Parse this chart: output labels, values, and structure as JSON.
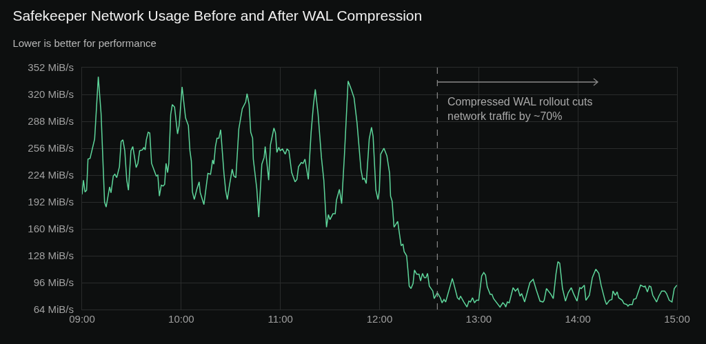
{
  "chart_data": {
    "type": "line",
    "title": "Safekeeper Network Usage Before and After WAL Compression",
    "subtitle": "Lower is better for performance",
    "series": [
      {
        "color": "#5ed69b",
        "x": [
          9.0,
          9.014,
          9.03,
          9.046,
          9.06,
          9.081,
          9.127,
          9.164,
          9.192,
          9.227,
          9.243,
          9.278,
          9.292,
          9.315,
          9.331,
          9.35,
          9.377,
          9.394,
          9.412,
          9.431,
          9.451,
          9.468,
          9.493,
          9.512,
          9.546,
          9.563,
          9.581,
          9.609,
          9.623,
          9.637,
          9.648,
          9.667,
          9.683,
          9.701,
          9.748,
          9.764,
          9.78,
          9.799,
          9.817,
          9.833,
          9.847,
          9.863,
          9.875,
          9.894,
          9.91,
          9.933,
          9.963,
          9.979,
          10.009,
          10.044,
          10.072,
          10.088,
          10.102,
          10.113,
          10.132,
          10.157,
          10.181,
          10.192,
          10.229,
          10.269,
          10.296,
          10.317,
          10.329,
          10.345,
          10.361,
          10.38,
          10.398,
          10.431,
          10.449,
          10.465,
          10.484,
          10.514,
          10.53,
          10.551,
          10.581,
          10.616,
          10.65,
          10.664,
          10.685,
          10.701,
          10.72,
          10.727,
          10.762,
          10.782,
          10.813,
          10.836,
          10.847,
          10.882,
          10.9,
          10.935,
          10.951,
          10.965,
          10.984,
          10.998,
          11.021,
          11.049,
          11.067,
          11.086,
          11.114,
          11.148,
          11.167,
          11.183,
          11.211,
          11.229,
          11.248,
          11.282,
          11.31,
          11.333,
          11.352,
          11.38,
          11.414,
          11.438,
          11.465,
          11.484,
          11.5,
          11.53,
          11.553,
          11.565,
          11.595,
          11.618,
          11.646,
          11.683,
          11.715,
          11.743,
          11.773,
          11.813,
          11.831,
          11.847,
          11.866,
          11.896,
          11.919,
          11.935,
          11.963,
          11.984,
          11.998,
          12.012,
          12.044,
          12.074,
          12.102,
          12.111,
          12.127,
          12.146,
          12.183,
          12.218,
          12.236,
          12.248,
          12.273,
          12.287,
          12.299,
          12.317,
          12.338,
          12.352,
          12.375,
          12.398,
          12.414,
          12.433,
          12.452,
          12.468,
          12.484,
          12.502,
          12.537,
          12.551,
          12.583,
          12.613,
          12.63,
          12.65,
          12.667,
          12.734,
          12.757,
          12.785,
          12.803,
          12.817,
          12.85,
          12.882,
          12.901,
          12.917,
          12.938,
          12.958,
          12.977,
          13.0,
          13.03,
          13.051,
          13.069,
          13.086,
          13.116,
          13.134,
          13.15,
          13.215,
          13.243,
          13.262,
          13.273,
          13.289,
          13.308,
          13.347,
          13.37,
          13.394,
          13.417,
          13.433,
          13.463,
          13.516,
          13.549,
          13.579,
          13.618,
          13.648,
          13.66,
          13.683,
          13.729,
          13.752,
          13.78,
          13.799,
          13.817,
          13.845,
          13.875,
          13.903,
          13.933,
          13.956,
          13.991,
          14.019,
          14.035,
          14.065,
          14.081,
          14.116,
          14.146,
          14.181,
          14.211,
          14.234,
          14.273,
          14.289,
          14.319,
          14.343,
          14.354,
          14.377,
          14.396,
          14.412,
          14.447,
          14.465,
          14.493,
          14.505,
          14.521,
          14.549,
          14.562,
          14.586,
          14.632,
          14.667,
          14.678,
          14.701,
          14.72,
          14.736,
          14.755,
          14.794,
          14.817,
          14.845,
          14.875,
          14.894,
          14.921,
          14.949,
          14.972,
          14.998
        ],
        "values": [
          201,
          218,
          204,
          206,
          243,
          244,
          267,
          341,
          297,
          192,
          186,
          210,
          203,
          223,
          225,
          221,
          234,
          264,
          266,
          253,
          218,
          206,
          253,
          258,
          233,
          238,
          253,
          254,
          257,
          254,
          266,
          275,
          274,
          238,
          223,
          224,
          199,
          212,
          211,
          213,
          238,
          227,
          238,
          296,
          308,
          305,
          273,
          283,
          329,
          292,
          283,
          253,
          241,
          204,
          195,
          207,
          216,
          203,
          189,
          226,
          225,
          242,
          237,
          258,
          268,
          268,
          278,
          226,
          205,
          195,
          210,
          231,
          223,
          221,
          279,
          303,
          311,
          321,
          308,
          275,
          268,
          243,
          208,
          174,
          237,
          245,
          258,
          218,
          260,
          280,
          274,
          251,
          257,
          253,
          255,
          249,
          255,
          253,
          227,
          216,
          219,
          234,
          239,
          238,
          243,
          219,
          275,
          307,
          326,
          297,
          245,
          218,
          162,
          177,
          171,
          178,
          178,
          194,
          207,
          190,
          248,
          336,
          326,
          316,
          286,
          230,
          219,
          220,
          214,
          267,
          281,
          270,
          206,
          195,
          206,
          249,
          256,
          247,
          226,
          199,
          193,
          162,
          169,
          140,
          142,
          133,
          128,
          110,
          92,
          89,
          95,
          111,
          106,
          106,
          98,
          107,
          102,
          102,
          107,
          92,
          86,
          77,
          84,
          78,
          72,
          76,
          73,
          101,
          91,
          78,
          76,
          80,
          73,
          67,
          74,
          73,
          78,
          72,
          75,
          75,
          104,
          108,
          105,
          91,
          82,
          82,
          77,
          67,
          72,
          70,
          67,
          73,
          72,
          90,
          86,
          89,
          80,
          83,
          73,
          96,
          100,
          88,
          74,
          73,
          75,
          89,
          82,
          77,
          107,
          121,
          119,
          89,
          74,
          84,
          90,
          83,
          74,
          90,
          89,
          93,
          75,
          81,
          102,
          112,
          107,
          93,
          75,
          70,
          75,
          76,
          86,
          81,
          85,
          78,
          75,
          71,
          70,
          68,
          70,
          70,
          76,
          77,
          93,
          91,
          92,
          85,
          92,
          91,
          81,
          73,
          80,
          86,
          86,
          83,
          75,
          73,
          89,
          93
        ]
      }
    ],
    "xlim": [
      9,
      15
    ],
    "xticks": [
      {
        "value": 9,
        "label": "09:00"
      },
      {
        "value": 10,
        "label": "10:00"
      },
      {
        "value": 11,
        "label": "11:00"
      },
      {
        "value": 12,
        "label": "12:00"
      },
      {
        "value": 13,
        "label": "13:00"
      },
      {
        "value": 14,
        "label": "14:00"
      },
      {
        "value": 15,
        "label": "15:00"
      }
    ],
    "ylim": [
      64,
      352
    ],
    "yticks": [
      {
        "value": 64,
        "label": "64 MiB/s"
      },
      {
        "value": 96,
        "label": "96 MiB/s"
      },
      {
        "value": 128,
        "label": "128 MiB/s"
      },
      {
        "value": 160,
        "label": "160 MiB/s"
      },
      {
        "value": 192,
        "label": "192 MiB/s"
      },
      {
        "value": 224,
        "label": "224 MiB/s"
      },
      {
        "value": 256,
        "label": "256 MiB/s"
      },
      {
        "value": 288,
        "label": "288 MiB/s"
      },
      {
        "value": 320,
        "label": "320 MiB/s"
      },
      {
        "value": 352,
        "label": "352 MiB/s"
      }
    ],
    "ref_lines": [
      {
        "axis": "x",
        "value": 12.583,
        "label": "Compressed WAL rollout cuts\nnetwork traffic by ~70%",
        "color": "#8a8a8a",
        "line_style": "dashed"
      }
    ],
    "grid": true,
    "marker": "none",
    "line_style": "solid"
  }
}
